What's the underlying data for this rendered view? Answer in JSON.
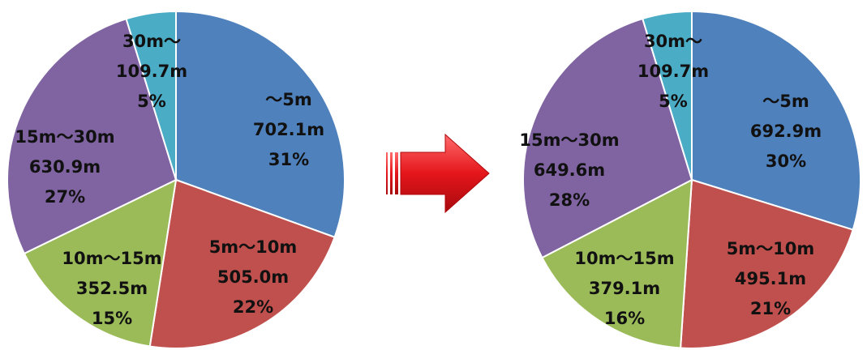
{
  "colors": {
    "blue": "#4F81BD",
    "red": "#C0504D",
    "green": "#9BBB59",
    "purple": "#8064A2",
    "cyan": "#4BACC6",
    "arrow": "#E4161B"
  },
  "arrow": {
    "icon": "right-arrow-icon"
  },
  "chart_data": [
    {
      "type": "pie",
      "title": "",
      "slices": [
        {
          "label": "～5m",
          "value": 702.1,
          "value_text": "702.1m",
          "percent_text": "31%",
          "color": "#4F81BD"
        },
        {
          "label": "5m～10m",
          "value": 505.0,
          "value_text": "505.0m",
          "percent_text": "22%",
          "color": "#C0504D"
        },
        {
          "label": "10m～15m",
          "value": 352.5,
          "value_text": "352.5m",
          "percent_text": "15%",
          "color": "#9BBB59"
        },
        {
          "label": "15m～30m",
          "value": 630.9,
          "value_text": "630.9m",
          "percent_text": "27%",
          "color": "#8064A2"
        },
        {
          "label": "30m～",
          "value": 109.7,
          "value_text": "109.7m",
          "percent_text": "5%",
          "color": "#4BACC6"
        }
      ]
    },
    {
      "type": "pie",
      "title": "",
      "slices": [
        {
          "label": "～5m",
          "value": 692.9,
          "value_text": "692.9m",
          "percent_text": "30%",
          "color": "#4F81BD"
        },
        {
          "label": "5m～10m",
          "value": 495.1,
          "value_text": "495.1m",
          "percent_text": "21%",
          "color": "#C0504D"
        },
        {
          "label": "10m～15m",
          "value": 379.1,
          "value_text": "379.1m",
          "percent_text": "16%",
          "color": "#9BBB59"
        },
        {
          "label": "15m～30m",
          "value": 649.6,
          "value_text": "649.6m",
          "percent_text": "28%",
          "color": "#8064A2"
        },
        {
          "label": "30m～",
          "value": 109.7,
          "value_text": "109.7m",
          "percent_text": "5%",
          "color": "#4BACC6"
        }
      ]
    }
  ]
}
